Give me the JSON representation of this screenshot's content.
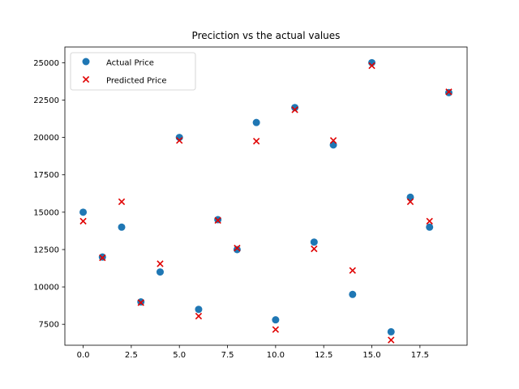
{
  "chart_data": {
    "type": "scatter",
    "title": "Preciction vs the actual values",
    "xlabel": "",
    "ylabel": "",
    "xlim": [
      -0.95,
      19.95
    ],
    "ylim": [
      6100,
      26050
    ],
    "x_ticks": [
      0,
      2.5,
      5,
      7.5,
      10,
      12.5,
      15,
      17.5
    ],
    "x_tick_labels": [
      "0.0",
      "2.5",
      "5.0",
      "7.5",
      "10.0",
      "12.5",
      "15.0",
      "17.5"
    ],
    "y_ticks": [
      7500,
      10000,
      12500,
      15000,
      17500,
      20000,
      22500,
      25000
    ],
    "y_tick_labels": [
      "7500",
      "10000",
      "12500",
      "15000",
      "17500",
      "20000",
      "22500",
      "25000"
    ],
    "grid": false,
    "legend_position": "top-left",
    "series": [
      {
        "name": "Actual Price",
        "marker": "circle",
        "color": "#1f77b4",
        "x": [
          0,
          1,
          2,
          3,
          4,
          5,
          6,
          7,
          8,
          9,
          10,
          11,
          12,
          13,
          14,
          15,
          16,
          17,
          18,
          19
        ],
        "y": [
          15000,
          12000,
          14000,
          9000,
          11000,
          20000,
          8500,
          14500,
          12500,
          21000,
          7800,
          22000,
          13000,
          19500,
          9500,
          25000,
          7000,
          16000,
          14000,
          23000
        ]
      },
      {
        "name": "Predicted Price",
        "marker": "x",
        "color": "#e00000",
        "x": [
          0,
          1,
          2,
          3,
          4,
          5,
          6,
          7,
          8,
          9,
          10,
          11,
          12,
          13,
          14,
          15,
          16,
          17,
          18,
          19
        ],
        "y": [
          14400,
          11950,
          15700,
          8950,
          11550,
          19800,
          8050,
          14450,
          12600,
          19750,
          7150,
          21850,
          12550,
          19800,
          11100,
          24800,
          6450,
          15700,
          14400,
          23050
        ]
      }
    ]
  }
}
